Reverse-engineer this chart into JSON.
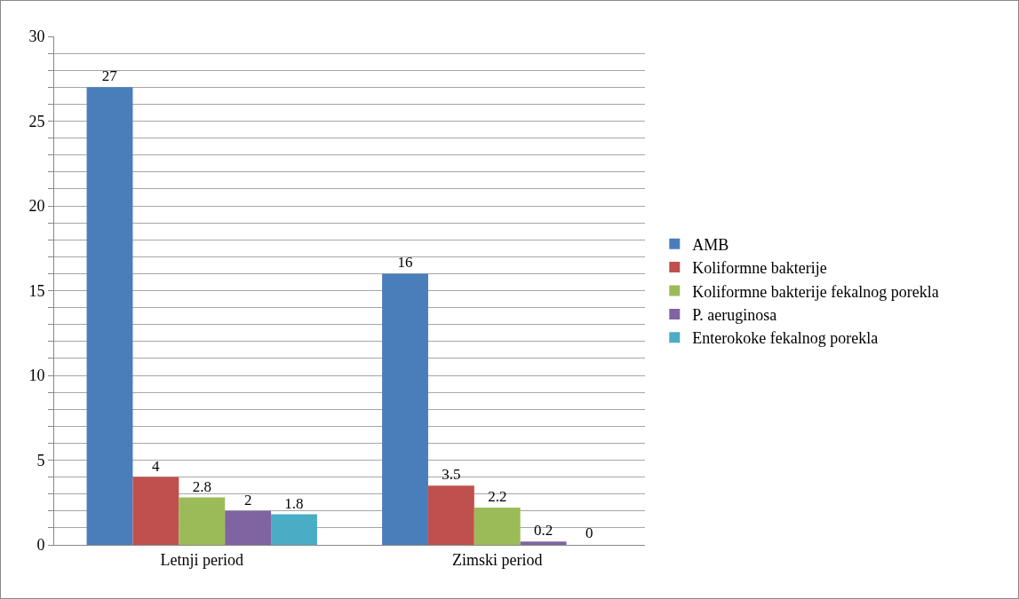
{
  "chart_data": {
    "type": "bar",
    "categories": [
      "Letnji period",
      "Zimski period"
    ],
    "series": [
      {
        "name": "AMB",
        "color": "#4a7ebb",
        "values": [
          27,
          16
        ]
      },
      {
        "name": "Koliformne bakterije",
        "color": "#c0504d",
        "values": [
          4,
          3.5
        ]
      },
      {
        "name": "Koliformne bakterije fekalnog porekla",
        "color": "#9bbb59",
        "values": [
          2.8,
          2.2
        ]
      },
      {
        "name": "P. aeruginosa",
        "color": "#8064a2",
        "values": [
          2,
          0.2
        ]
      },
      {
        "name": "Enterokoke fekalnog porekla",
        "color": "#4bacc6",
        "values": [
          1.8,
          0
        ],
        "value_labels": [
          "1.8",
          null
        ]
      }
    ],
    "ylim": [
      0,
      30
    ],
    "yticks": [
      0,
      {
        "value": 1,
        "label": null
      },
      {
        "value": 2,
        "label": null
      },
      {
        "value": 3,
        "label": null
      },
      {
        "value": 4,
        "label": null
      },
      5,
      {
        "value": 6,
        "label": null
      },
      {
        "value": 7,
        "label": null
      },
      {
        "value": 8,
        "label": null
      },
      {
        "value": 9,
        "label": null
      },
      10,
      {
        "value": 11,
        "label": null
      },
      {
        "value": 12,
        "label": null
      },
      {
        "value": 13,
        "label": null
      },
      {
        "value": 14,
        "label": null
      },
      15,
      {
        "value": 16,
        "label": null
      },
      {
        "value": 17,
        "label": null
      },
      {
        "value": 18,
        "label": null
      },
      {
        "value": 19,
        "label": null
      },
      20,
      {
        "value": 21,
        "label": null
      },
      {
        "value": 22,
        "label": null
      },
      {
        "value": 23,
        "label": null
      },
      {
        "value": 24,
        "label": null
      },
      25,
      {
        "value": 26,
        "label": null
      },
      {
        "value": 27,
        "label": null
      },
      {
        "value": 28,
        "label": null
      },
      {
        "value": 29,
        "label": null
      },
      30
    ],
    "grid": "y",
    "legend": "right",
    "data_labels": true,
    "annotations": [
      "0"
    ]
  }
}
